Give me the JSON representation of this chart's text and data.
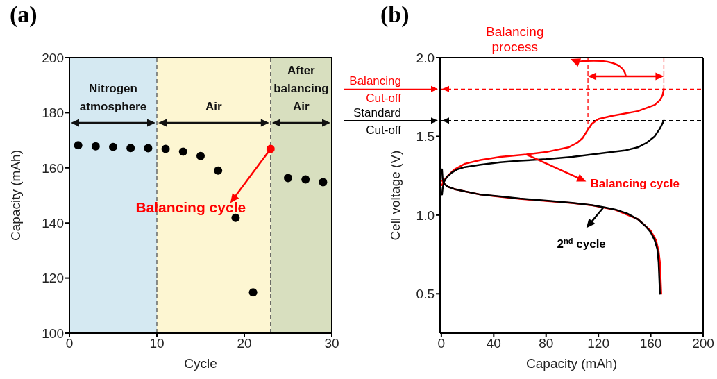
{
  "chart_data": [
    {
      "type": "scatter",
      "title": "(a)",
      "xlabel": "Cycle",
      "ylabel": "Capacity (mAh)",
      "xlim": [
        0,
        30
      ],
      "xticks": [
        0,
        10,
        20,
        30
      ],
      "ylim": [
        100,
        200
      ],
      "yticks": [
        100,
        120,
        140,
        160,
        180,
        200
      ],
      "marker": "circle",
      "series": [
        {
          "color": "#000000",
          "x": [
            1,
            3,
            5,
            7,
            9,
            11,
            13,
            15,
            17,
            19,
            21,
            25,
            27,
            29
          ],
          "values": [
            168.2,
            167.8,
            167.6,
            167.2,
            167.1,
            166.9,
            165.9,
            164.3,
            159,
            141.9,
            114.8,
            156.3,
            155.8,
            154.8
          ]
        },
        {
          "color": "#ff0000",
          "x": [
            23
          ],
          "values": [
            166.9
          ]
        }
      ],
      "bands": [
        {
          "axis": "x",
          "from": 0,
          "to": 10,
          "label": "Nitrogen atmosphere",
          "color": "#d5e9f2"
        },
        {
          "axis": "x",
          "from": 10,
          "to": 23,
          "label": "Air",
          "color": "#fdf6d2"
        },
        {
          "axis": "x",
          "from": 23,
          "to": 30,
          "label": "After balancing Air",
          "color": "#d8dfbf"
        }
      ],
      "ref_lines": [
        {
          "axis": "x",
          "value": 10,
          "color": "#555555",
          "line_style": "dashed"
        },
        {
          "axis": "x",
          "value": 23,
          "color": "#555555",
          "line_style": "dashed"
        }
      ],
      "annotations": [
        {
          "text": "Balancing cycle",
          "x": 23,
          "y": 166.9
        }
      ]
    },
    {
      "type": "line",
      "title": "(b)",
      "xlabel": "Capacity (mAh)",
      "ylabel": "Cell voltage (V)",
      "xlim": [
        -1,
        200
      ],
      "xticks": [
        0,
        40,
        80,
        120,
        160,
        200
      ],
      "ylim": [
        0.25,
        2.0
      ],
      "yticks": [
        0.5,
        {
          "value": 1,
          "label": "1.0"
        },
        1.5,
        {
          "value": 2,
          "label": "2.0"
        }
      ],
      "marker": "none",
      "line_style": "solid",
      "series": [
        {
          "color": "#ff0000",
          "x": [
            0.5,
            1,
            3,
            5,
            10,
            18,
            30,
            45,
            65,
            80,
            97,
            104,
            108,
            111,
            115,
            120,
            130,
            150,
            163,
            167,
            169,
            170
          ],
          "values": [
            1.19,
            1.2,
            1.23,
            1.25,
            1.29,
            1.326,
            1.35,
            1.37,
            1.385,
            1.4,
            1.43,
            1.46,
            1.49,
            1.53,
            1.58,
            1.61,
            1.63,
            1.66,
            1.7,
            1.73,
            1.76,
            1.8
          ]
        },
        {
          "color": "#ff0000",
          "x": [
            0.5,
            2,
            5,
            10,
            18,
            30,
            45,
            60,
            80,
            100,
            115,
            133,
            150,
            160,
            164,
            166,
            167,
            167.5,
            168
          ],
          "values": [
            1.22,
            1.2,
            1.18,
            1.165,
            1.15,
            1.13,
            1.116,
            1.103,
            1.09,
            1.076,
            1.062,
            1.033,
            0.975,
            0.9,
            0.84,
            0.77,
            0.7,
            0.6,
            0.5
          ]
        },
        {
          "color": "#000000",
          "x": [
            0.5,
            1,
            2,
            4,
            8,
            12,
            18,
            30,
            45,
            60,
            80,
            100,
            115,
            130,
            140,
            150,
            157,
            163,
            167,
            170
          ],
          "values": [
            1.13,
            1.17,
            1.21,
            1.24,
            1.27,
            1.29,
            1.305,
            1.32,
            1.335,
            1.345,
            1.355,
            1.37,
            1.385,
            1.4,
            1.41,
            1.43,
            1.46,
            1.5,
            1.55,
            1.6
          ]
        },
        {
          "color": "#000000",
          "x": [
            0.5,
            1,
            2,
            5,
            10,
            18,
            30,
            45,
            60,
            80,
            100,
            115,
            124,
            133,
            142,
            150,
            156,
            160,
            163,
            165,
            166,
            166.5,
            167
          ],
          "values": [
            1.29,
            1.23,
            1.2,
            1.18,
            1.165,
            1.15,
            1.13,
            1.118,
            1.105,
            1.092,
            1.078,
            1.063,
            1.05,
            1.035,
            1.01,
            0.975,
            0.93,
            0.89,
            0.84,
            0.785,
            0.7,
            0.6,
            0.5
          ]
        }
      ],
      "ref_lines": [
        {
          "axis": "y",
          "value": 1.8,
          "label": "Balancing Cut-off",
          "color": "#ff0000",
          "line_style": "dashed"
        },
        {
          "axis": "y",
          "value": 1.6,
          "label": "Standard Cut-off",
          "color": "#000000",
          "line_style": "dashed"
        },
        {
          "axis": "x",
          "value": 112,
          "color": "#ff0000",
          "line_style": "dashed"
        },
        {
          "axis": "x",
          "value": 170,
          "color": "#ff0000",
          "line_style": "dashed"
        }
      ],
      "annotations": [
        {
          "text": "Balancing cycle",
          "x": 65,
          "y": 1.385
        },
        {
          "text": "2$^{nd}$ cycle",
          "x": 124,
          "y": 1.05
        },
        "Balancing process"
      ]
    }
  ]
}
